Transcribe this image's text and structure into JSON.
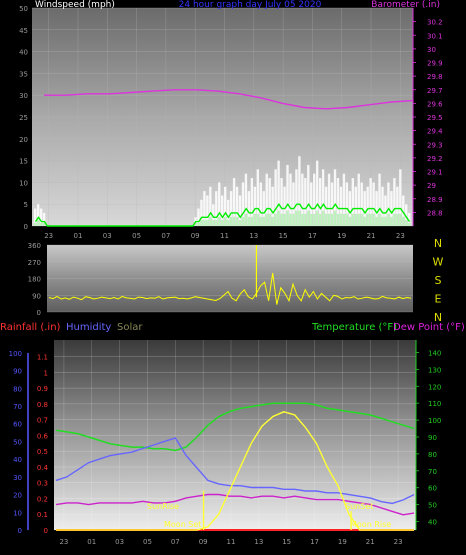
{
  "colors": {
    "wind_gust": "#ffffff",
    "wind_avg": "#00ee00",
    "wind_light": "#b8f0b8",
    "barometer": "#dd33dd",
    "direction": "#ffff00",
    "rain": "#ff2222",
    "humidity": "#6666ff",
    "solar": "#ffff33",
    "temperature": "#22dd22",
    "dewpoint": "#cc22cc",
    "left_axis": "#999999",
    "baro_axis": "#dd33dd",
    "humidity_axis": "#5555ff",
    "rain_axis": "#ff3333",
    "temp_axis": "#22cc22",
    "compass": "#dddd00"
  },
  "chart_data": [
    {
      "type": "bar",
      "title": "24 hour graph day   July 05 2020",
      "ylabel": "Windspeed (mph)",
      "y2label": "Barometer (.in)",
      "ylim": [
        0,
        50
      ],
      "y2lim": [
        28.7,
        30.3
      ],
      "yticks": [
        "0",
        "5",
        "10",
        "15",
        "20",
        "25",
        "30",
        "35",
        "40",
        "45",
        "50"
      ],
      "y2ticks": [
        "28.8",
        "28.9",
        "29",
        "29.1",
        "29.2",
        "29.3",
        "29.4",
        "29.5",
        "29.6",
        "29.7",
        "29.8",
        "29.9",
        "30",
        "30.1",
        "30.2"
      ],
      "xticks": [
        "23",
        "01",
        "03",
        "05",
        "07",
        "09",
        "11",
        "13",
        "15",
        "17",
        "19",
        "21",
        "23"
      ],
      "grid": true,
      "series": [
        {
          "key": "gust",
          "values": [
            4,
            5,
            4,
            3,
            0,
            0,
            0,
            0,
            0,
            0,
            0,
            0,
            0,
            0,
            0,
            0,
            0,
            0,
            0,
            0,
            0,
            0,
            0,
            0,
            0,
            0,
            0,
            0,
            0,
            0,
            0,
            0,
            0,
            0,
            0,
            0,
            0,
            0,
            0,
            0,
            0,
            0,
            0,
            0,
            0,
            0,
            0,
            0,
            0,
            0,
            0,
            0,
            0,
            0,
            2,
            4,
            6,
            8,
            7,
            9,
            5,
            8,
            10,
            7,
            9,
            6,
            8,
            11,
            9,
            7,
            10,
            12,
            8,
            11,
            9,
            13,
            10,
            8,
            12,
            11,
            9,
            13,
            15,
            11,
            9,
            14,
            12,
            10,
            13,
            16,
            12,
            11,
            14,
            10,
            12,
            15,
            11,
            13,
            9,
            12,
            10,
            13,
            11,
            9,
            12,
            10,
            8,
            11,
            9,
            12,
            10,
            8,
            9,
            11,
            10,
            8,
            12,
            9,
            7,
            10,
            8,
            11,
            9,
            13,
            7,
            5,
            3
          ]
        },
        {
          "key": "avg",
          "values": [
            1,
            2,
            1,
            1,
            0,
            0,
            0,
            0,
            0,
            0,
            0,
            0,
            0,
            0,
            0,
            0,
            0,
            0,
            0,
            0,
            0,
            0,
            0,
            0,
            0,
            0,
            0,
            0,
            0,
            0,
            0,
            0,
            0,
            0,
            0,
            0,
            0,
            0,
            0,
            0,
            0,
            0,
            0,
            0,
            0,
            0,
            0,
            0,
            0,
            0,
            0,
            0,
            0,
            0,
            1,
            1,
            2,
            2,
            2,
            3,
            2,
            2,
            3,
            2,
            3,
            2,
            3,
            3,
            3,
            2,
            3,
            4,
            3,
            3,
            4,
            4,
            3,
            3,
            4,
            4,
            3,
            4,
            5,
            4,
            4,
            5,
            4,
            4,
            5,
            5,
            4,
            4,
            5,
            4,
            4,
            5,
            4,
            5,
            4,
            4,
            4,
            5,
            4,
            4,
            4,
            4,
            3,
            4,
            4,
            4,
            4,
            3,
            4,
            4,
            4,
            3,
            4,
            3,
            3,
            4,
            3,
            4,
            4,
            4,
            3,
            2,
            1
          ]
        },
        {
          "key": "barometer",
          "values": [
            29.66,
            29.66,
            29.67,
            29.67,
            29.68,
            29.69,
            29.7,
            29.7,
            29.69,
            29.67,
            29.64,
            29.6,
            29.57,
            29.56,
            29.57,
            29.59,
            29.61,
            29.62
          ]
        }
      ]
    },
    {
      "type": "scatter",
      "ylabel": "Wind Direction",
      "ylim": [
        0,
        360
      ],
      "yticks": [
        "0",
        "90",
        "180",
        "270",
        "360"
      ],
      "compass": [
        "N",
        "W",
        "S",
        "E",
        "N"
      ],
      "series": [
        {
          "key": "direction",
          "values": [
            78,
            72,
            84,
            70,
            76,
            68,
            80,
            74,
            66,
            82,
            78,
            70,
            74,
            80,
            76,
            72,
            78,
            70,
            84,
            76,
            74,
            70,
            80,
            78,
            72,
            76,
            74,
            82,
            70,
            76,
            78,
            80,
            72,
            74,
            70,
            76,
            82,
            78,
            74,
            70,
            66,
            62,
            72,
            90,
            110,
            74,
            60,
            96,
            120,
            82,
            70,
            100,
            140,
            160,
            60,
            210,
            40,
            130,
            100,
            60,
            150,
            90,
            60,
            120,
            80,
            110,
            70,
            100,
            80,
            60,
            90,
            84,
            70,
            78,
            76,
            82,
            70,
            74,
            80,
            76,
            70,
            72,
            84,
            76,
            74,
            70,
            80,
            72,
            78,
            74
          ]
        }
      ]
    },
    {
      "type": "line",
      "ylabel": "Humidity",
      "y_rain_label": "Rainfall (.in)",
      "y_solar_label": "Solar",
      "y2label": "Temperature (°F)",
      "y3label": "Dew Point (°F)",
      "humidity_ticks": [
        "0",
        "10",
        "20",
        "30",
        "40",
        "50",
        "60",
        "70",
        "80",
        "90",
        "100"
      ],
      "rain_ticks": [
        "0",
        "0.1",
        "0.2",
        "0.3",
        "0.4",
        "0.5",
        "0.6",
        "0.7",
        "0.8",
        "0.9",
        "1",
        "1.1"
      ],
      "temp_ticks": [
        "40",
        "50",
        "60",
        "70",
        "80",
        "90",
        "100",
        "110",
        "120",
        "130",
        "140"
      ],
      "xticks": [
        "23",
        "01",
        "03",
        "05",
        "07",
        "09",
        "11",
        "13",
        "15",
        "17",
        "19",
        "21",
        "23"
      ],
      "annotations": [
        "SunRise",
        "Moon Set",
        "SunSet",
        "Moon Rise"
      ],
      "series": [
        {
          "key": "temperature",
          "values": [
            94,
            93,
            92,
            90,
            88,
            86,
            85,
            84,
            84,
            83,
            83,
            82,
            84,
            90,
            97,
            102,
            105,
            107,
            108,
            109,
            110,
            110,
            110,
            110,
            109,
            107,
            106,
            105,
            104,
            103,
            101,
            99,
            97,
            95
          ]
        },
        {
          "key": "humidity",
          "values": [
            28,
            30,
            34,
            38,
            40,
            42,
            43,
            44,
            46,
            48,
            50,
            52,
            42,
            35,
            28,
            26,
            25,
            25,
            24,
            24,
            24,
            23,
            23,
            22,
            22,
            21,
            21,
            20,
            19,
            18,
            16,
            15,
            17,
            20
          ]
        },
        {
          "key": "dewpoint",
          "values": [
            50,
            51,
            51,
            50,
            51,
            51,
            51,
            51,
            52,
            51,
            51,
            52,
            54,
            55,
            56,
            56,
            55,
            55,
            54,
            55,
            55,
            54,
            55,
            54,
            53,
            53,
            53,
            52,
            51,
            50,
            48,
            46,
            44,
            45
          ]
        },
        {
          "key": "solar",
          "values": [
            0,
            0,
            0,
            0,
            0,
            0,
            0,
            0,
            0,
            0,
            0,
            0,
            0,
            0,
            2,
            10,
            25,
            40,
            55,
            66,
            72,
            75,
            73,
            65,
            55,
            40,
            28,
            10,
            0,
            0,
            0,
            0,
            0,
            0
          ]
        },
        {
          "key": "rain",
          "values": [
            0,
            0,
            0,
            0,
            0,
            0,
            0,
            0,
            0,
            0,
            0,
            0,
            0,
            0,
            0,
            0,
            0,
            0,
            0,
            0,
            0,
            0,
            0,
            0,
            0,
            0,
            0,
            0,
            0,
            0,
            0,
            0,
            0,
            0
          ]
        }
      ]
    }
  ]
}
